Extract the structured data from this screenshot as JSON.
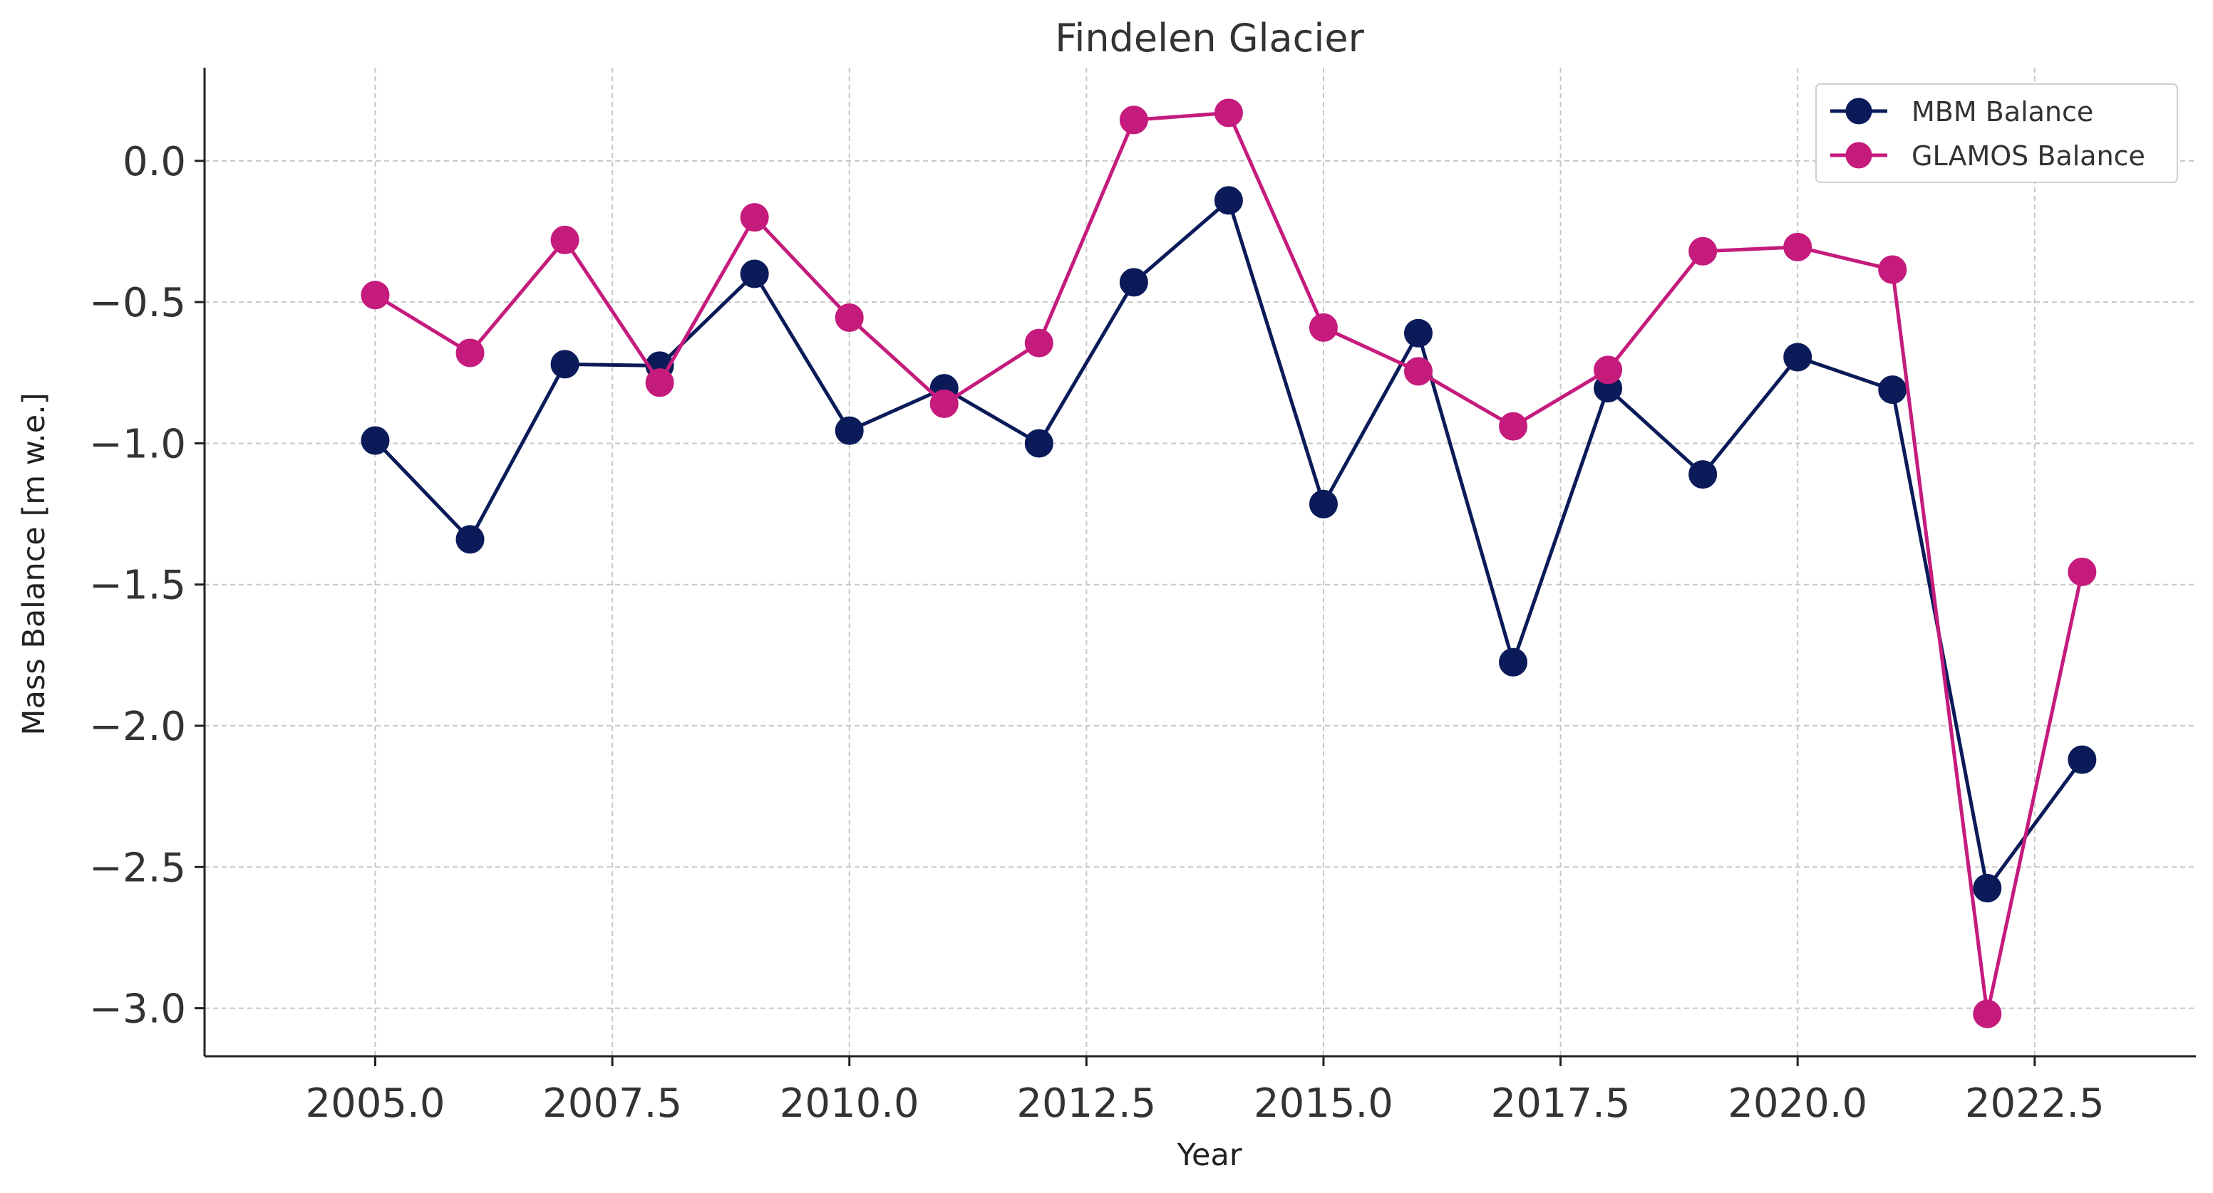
{
  "chart_data": {
    "type": "line",
    "title": "Findelen Glacier",
    "xlabel": "Year",
    "ylabel": "Mass Balance [m w.e.]",
    "x": [
      2005,
      2006,
      2007,
      2008,
      2009,
      2010,
      2011,
      2012,
      2013,
      2014,
      2015,
      2016,
      2017,
      2018,
      2019,
      2020,
      2021,
      2022,
      2023
    ],
    "series": [
      {
        "name": "MBM Balance",
        "color": "#0b1b59",
        "values": [
          -0.99,
          -1.34,
          -0.72,
          -0.725,
          -0.4,
          -0.955,
          -0.805,
          -1.0,
          -0.43,
          -0.14,
          -1.215,
          -0.61,
          -1.775,
          -0.805,
          -1.11,
          -0.695,
          -0.81,
          -2.575,
          -2.12
        ]
      },
      {
        "name": "GLAMOS Balance",
        "color": "#c51b7d",
        "values": [
          -0.475,
          -0.68,
          -0.28,
          -0.785,
          -0.2,
          -0.555,
          -0.86,
          -0.645,
          0.145,
          0.17,
          -0.59,
          -0.745,
          -0.94,
          -0.74,
          -0.32,
          -0.305,
          -0.385,
          -3.02,
          -1.455
        ]
      }
    ],
    "xlim": [
      2003.2,
      2024.2
    ],
    "ylim": [
      -3.17,
      0.33
    ],
    "xticks": [
      2005.0,
      2007.5,
      2010.0,
      2012.5,
      2015.0,
      2017.5,
      2020.0,
      2022.5
    ],
    "xtick_labels": [
      "2005.0",
      "2007.5",
      "2010.0",
      "2012.5",
      "2015.0",
      "2017.5",
      "2020.0",
      "2022.5"
    ],
    "yticks": [
      0.0,
      -0.5,
      -1.0,
      -1.5,
      -2.0,
      -2.5,
      -3.0
    ],
    "ytick_labels": [
      "0.0",
      "−0.5",
      "−1.0",
      "−1.5",
      "−2.0",
      "−2.5",
      "−3.0"
    ],
    "grid": true,
    "legend_position": "top-right"
  }
}
